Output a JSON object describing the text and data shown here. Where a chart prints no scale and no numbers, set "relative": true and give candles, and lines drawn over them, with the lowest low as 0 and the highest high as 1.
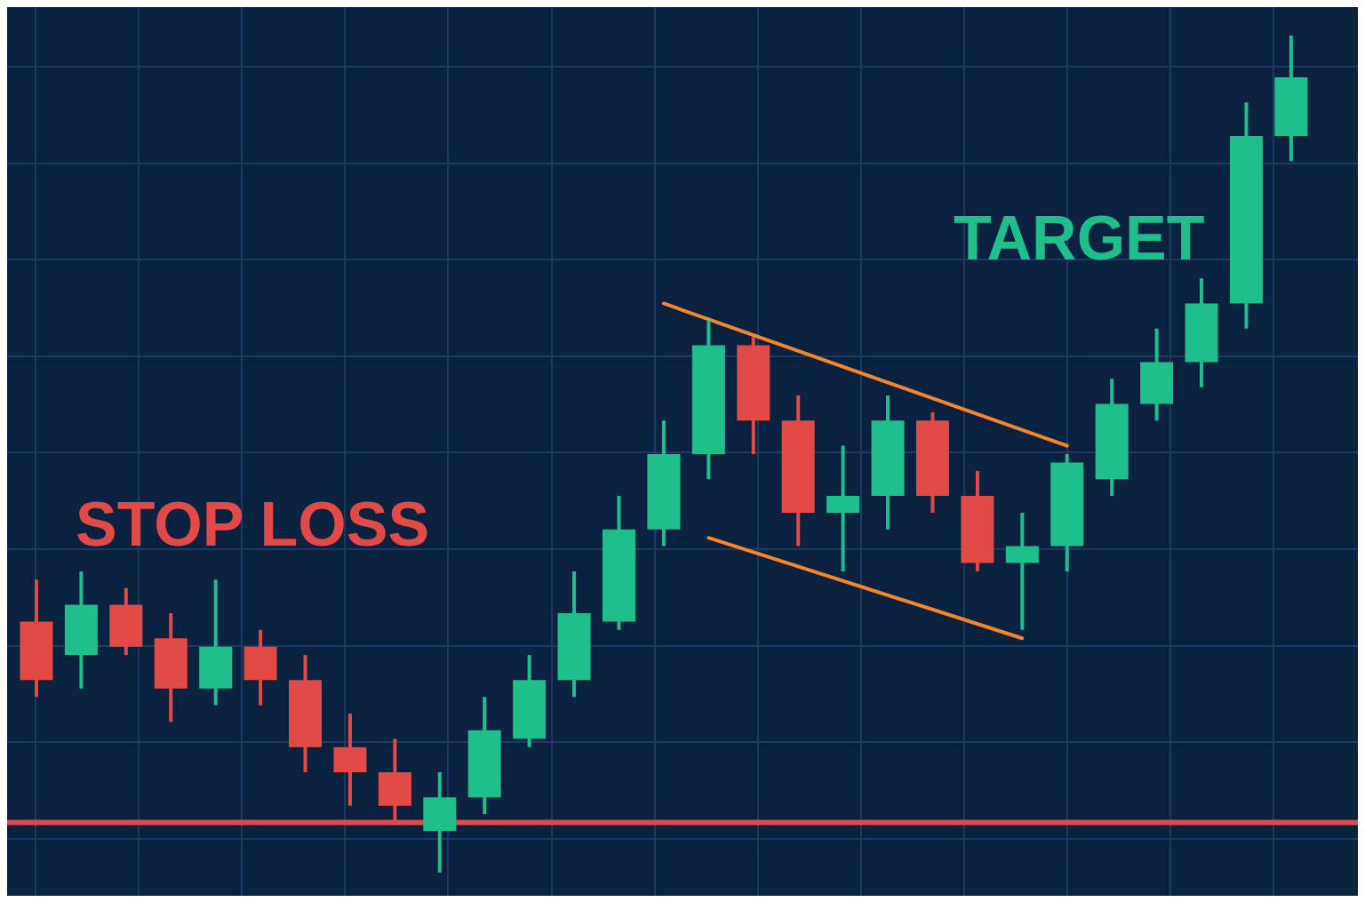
{
  "chart_data": {
    "type": "candlestick",
    "relative": true,
    "legend": false,
    "categories": [
      null,
      null,
      null,
      null,
      null,
      null,
      null,
      null,
      null,
      null,
      null,
      null,
      null,
      null,
      null,
      null,
      null,
      null,
      null,
      null,
      null,
      null,
      null,
      null,
      null,
      null,
      null,
      null,
      null
    ],
    "ohlc": [
      [
        0.3,
        0.35,
        0.21,
        0.23
      ],
      [
        0.26,
        0.36,
        0.22,
        0.32
      ],
      [
        0.32,
        0.34,
        0.26,
        0.27
      ],
      [
        0.28,
        0.31,
        0.18,
        0.22
      ],
      [
        0.22,
        0.35,
        0.2,
        0.27
      ],
      [
        0.27,
        0.29,
        0.2,
        0.23
      ],
      [
        0.23,
        0.26,
        0.12,
        0.15
      ],
      [
        0.15,
        0.19,
        0.08,
        0.12
      ],
      [
        0.12,
        0.16,
        0.06,
        0.08
      ],
      [
        0.05,
        0.12,
        0,
        0.09
      ],
      [
        0.09,
        0.21,
        0.07,
        0.17
      ],
      [
        0.16,
        0.26,
        0.15,
        0.23
      ],
      [
        0.23,
        0.36,
        0.21,
        0.31
      ],
      [
        0.3,
        0.45,
        0.29,
        0.41
      ],
      [
        0.41,
        0.54,
        0.39,
        0.5
      ],
      [
        0.5,
        0.66,
        0.47,
        0.63
      ],
      [
        0.63,
        0.64,
        0.5,
        0.54
      ],
      [
        0.54,
        0.57,
        0.39,
        0.43
      ],
      [
        0.43,
        0.51,
        0.36,
        0.45
      ],
      [
        0.45,
        0.57,
        0.41,
        0.54
      ],
      [
        0.54,
        0.55,
        0.43,
        0.45
      ],
      [
        0.45,
        0.48,
        0.36,
        0.37
      ],
      [
        0.37,
        0.43,
        0.29,
        0.39
      ],
      [
        0.39,
        0.5,
        0.36,
        0.49
      ],
      [
        0.47,
        0.59,
        0.45,
        0.56
      ],
      [
        0.56,
        0.65,
        0.54,
        0.61
      ],
      [
        0.61,
        0.71,
        0.58,
        0.68
      ],
      [
        0.68,
        0.92,
        0.65,
        0.88
      ],
      [
        0.88,
        1,
        0.85,
        0.95
      ]
    ],
    "colors": [
      "#e24a45",
      "#1fbf8c",
      "#e24a45",
      "#e24a45",
      "#1fbf8c",
      "#e24a45",
      "#e24a45",
      "#e24a45",
      "#e24a45",
      "#1fbf8c",
      "#1fbf8c",
      "#1fbf8c",
      "#1fbf8c",
      "#1fbf8c",
      "#1fbf8c",
      "#1fbf8c",
      "#e24a45",
      "#e24a45",
      "#1fbf8c",
      "#1fbf8c",
      "#e24a45",
      "#e24a45",
      "#1fbf8c",
      "#1fbf8c",
      "#1fbf8c",
      "#1fbf8c",
      "#1fbf8c",
      "#1fbf8c",
      "#1fbf8c"
    ],
    "series": [
      {
        "type": "line",
        "color": "#f5862a",
        "values": [
          null,
          null,
          null,
          null,
          null,
          null,
          null,
          null,
          null,
          null,
          null,
          null,
          null,
          null,
          0.68,
          null,
          null,
          null,
          null,
          null,
          null,
          null,
          null,
          0.51,
          null,
          null,
          null,
          null,
          null
        ]
      },
      {
        "type": "line",
        "color": "#f5862a",
        "values": [
          null,
          null,
          null,
          null,
          null,
          null,
          null,
          null,
          null,
          null,
          null,
          null,
          null,
          null,
          null,
          0.4,
          null,
          null,
          null,
          null,
          null,
          null,
          0.28,
          null,
          null,
          null,
          null,
          null,
          null
        ]
      }
    ],
    "ref_lines": [
      {
        "axis": "y",
        "value": 0.06,
        "color": "#e24a45",
        "line_style": "solid"
      }
    ],
    "annotations": [
      "STOP LOSS",
      "TARGET"
    ]
  }
}
